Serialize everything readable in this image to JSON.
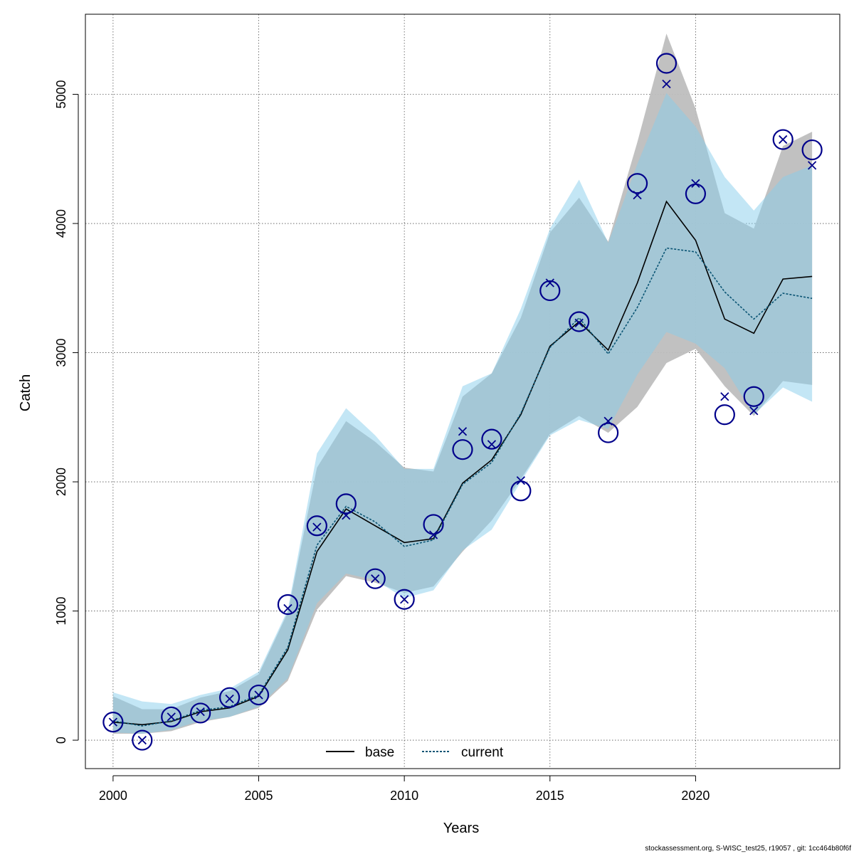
{
  "chart_data": {
    "type": "line",
    "xlabel": "Years",
    "ylabel": "Catch",
    "xlim": [
      1999.05,
      2024.95
    ],
    "ylim": [
      -220,
      5620
    ],
    "xticks": [
      2000,
      2005,
      2010,
      2015,
      2020
    ],
    "yticks": [
      0,
      1000,
      2000,
      3000,
      4000,
      5000
    ],
    "grid": true,
    "legend_position": "bottom-center",
    "x": [
      2000,
      2001,
      2002,
      2003,
      2004,
      2005,
      2006,
      2007,
      2008,
      2009,
      2010,
      2011,
      2012,
      2013,
      2014,
      2015,
      2016,
      2017,
      2018,
      2019,
      2020,
      2021,
      2022,
      2023,
      2024
    ],
    "series": [
      {
        "name": "base",
        "color": "#000000",
        "band_color": "#bebebe",
        "line_style": "solid",
        "values": [
          140,
          120,
          145,
          220,
          250,
          340,
          700,
          1460,
          1790,
          1660,
          1530,
          1560,
          1990,
          2170,
          2520,
          3050,
          3240,
          3020,
          3540,
          4170,
          3870,
          3260,
          3150,
          3570,
          3590
        ],
        "lower": [
          50,
          50,
          70,
          140,
          180,
          250,
          460,
          1010,
          1270,
          1220,
          1140,
          1190,
          1460,
          1700,
          2020,
          2370,
          2510,
          2380,
          2580,
          2920,
          3030,
          2740,
          2510,
          2780,
          2750
        ],
        "upper": [
          340,
          240,
          240,
          330,
          380,
          510,
          990,
          2110,
          2470,
          2310,
          2110,
          2080,
          2660,
          2840,
          3270,
          3930,
          4200,
          3860,
          4630,
          5470,
          4890,
          4080,
          3960,
          4600,
          4710
        ]
      },
      {
        "name": "current",
        "color": "#0b5574",
        "band_color": "#87ceeb",
        "line_style": "dotted",
        "values": [
          150,
          110,
          150,
          230,
          260,
          350,
          720,
          1510,
          1810,
          1690,
          1500,
          1550,
          1980,
          2150,
          2530,
          3040,
          3270,
          2990,
          3350,
          3810,
          3780,
          3470,
          3260,
          3460,
          3420
        ],
        "lower": [
          60,
          50,
          80,
          150,
          180,
          260,
          480,
          1060,
          1290,
          1240,
          1100,
          1160,
          1470,
          1630,
          2000,
          2360,
          2480,
          2410,
          2830,
          3160,
          3070,
          2880,
          2520,
          2730,
          2620
        ],
        "upper": [
          370,
          300,
          280,
          350,
          400,
          530,
          1010,
          2220,
          2570,
          2360,
          2100,
          2100,
          2740,
          2840,
          3340,
          3960,
          4340,
          3850,
          4460,
          5010,
          4750,
          4360,
          4100,
          4360,
          4450
        ]
      }
    ],
    "observed": {
      "marker": "circle",
      "color": "#00008b",
      "values": [
        140,
        0,
        180,
        210,
        330,
        350,
        1050,
        1660,
        1830,
        1250,
        1090,
        1670,
        2250,
        2330,
        1930,
        3480,
        3240,
        2380,
        4310,
        5240,
        4230,
        2520,
        2660,
        4650,
        4570
      ]
    },
    "expected": {
      "marker": "cross",
      "color": "#00008b",
      "values": [
        140,
        0,
        180,
        220,
        320,
        350,
        1020,
        1650,
        1740,
        1250,
        1090,
        1590,
        2390,
        2290,
        2010,
        3540,
        3230,
        2470,
        4220,
        5080,
        4310,
        2660,
        2550,
        4650,
        4450
      ]
    }
  },
  "footer": "stockassessment.org, S-WISC_test25, r19057 , git: 1cc464b80f6f"
}
